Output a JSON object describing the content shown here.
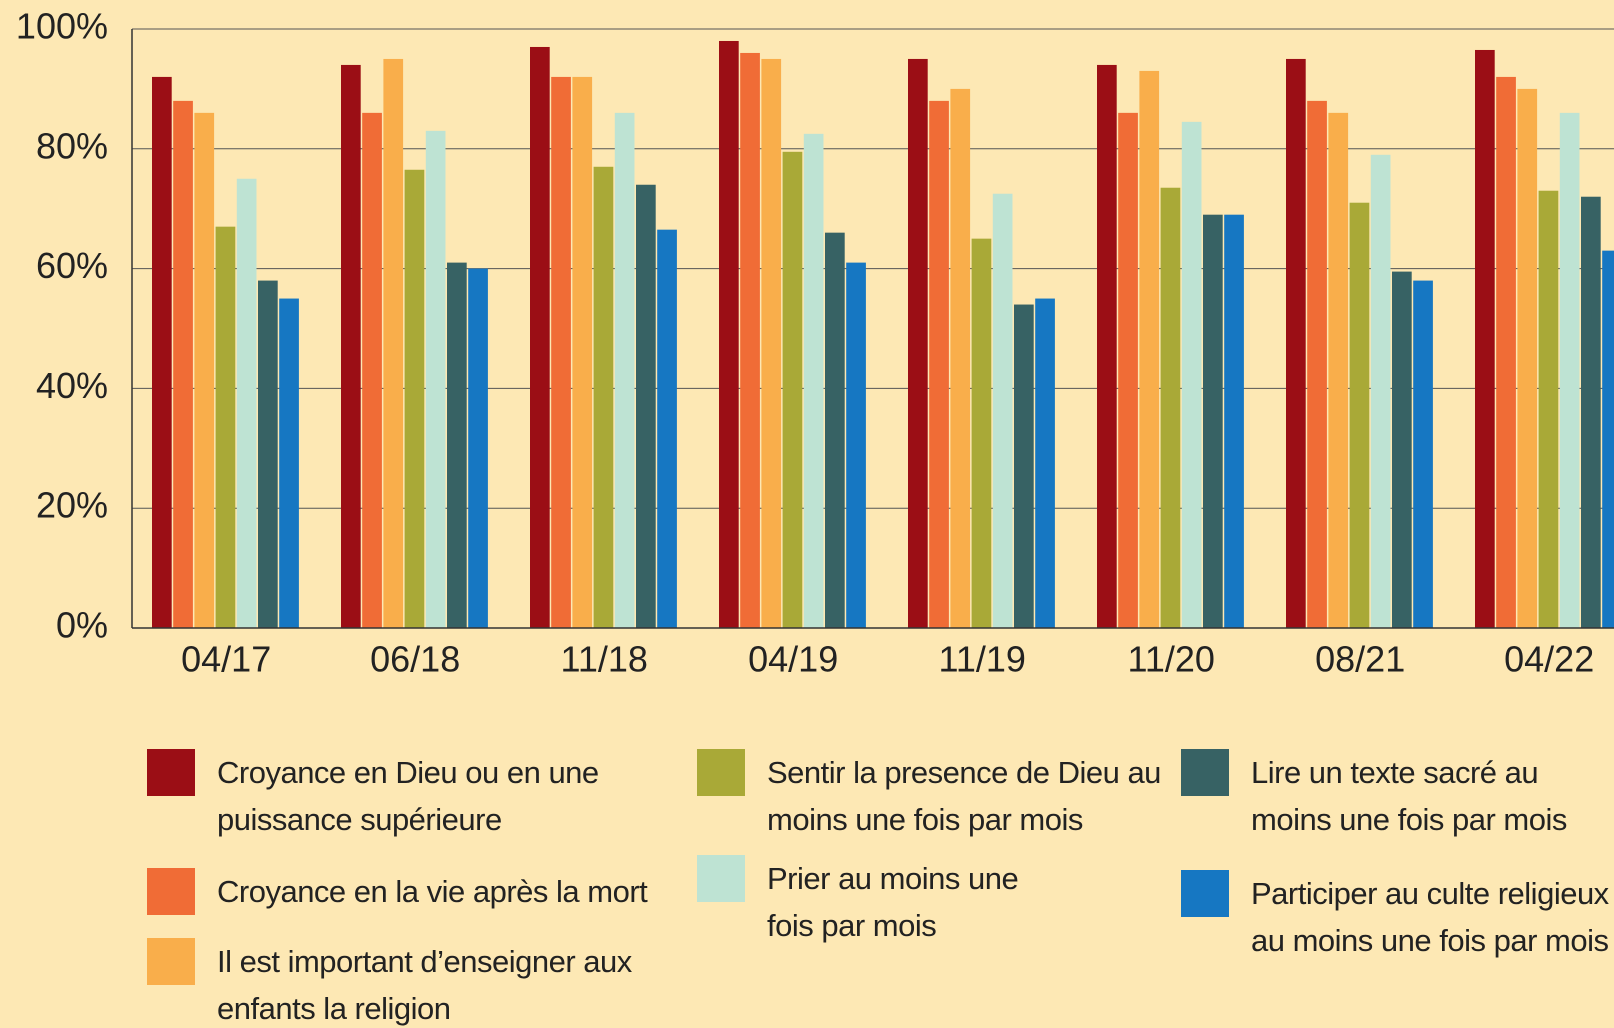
{
  "chart_data": {
    "type": "bar",
    "categories": [
      "04/17",
      "06/18",
      "11/18",
      "04/19",
      "11/19",
      "11/20",
      "08/21",
      "04/22"
    ],
    "series": [
      {
        "name": "Croyance en Dieu ou en une puissance supérieure",
        "color": "#9b0e15",
        "values": [
          92,
          94,
          97,
          98,
          95,
          94,
          95,
          96.5
        ]
      },
      {
        "name": "Croyance en la vie après la mort",
        "color": "#f06c36",
        "values": [
          88,
          86,
          92,
          96,
          88,
          86,
          88,
          92
        ]
      },
      {
        "name": "Il est important d’enseigner aux enfants la religion",
        "color": "#f9ae4b",
        "values": [
          86,
          95,
          92,
          95,
          90,
          93,
          86,
          90
        ]
      },
      {
        "name": "Sentir la presence de Dieu au moins une fois par mois",
        "color": "#a9a937",
        "values": [
          67,
          76.5,
          77,
          79.5,
          65,
          73.5,
          71,
          73
        ]
      },
      {
        "name": "Prier au moins une fois par mois",
        "color": "#bee3d3",
        "values": [
          75,
          83,
          86,
          82.5,
          72.5,
          84.5,
          79,
          86
        ]
      },
      {
        "name": "Lire un texte sacré au moins une fois par mois",
        "color": "#376264",
        "values": [
          58,
          61,
          74,
          66,
          54,
          69,
          59.5,
          72
        ]
      },
      {
        "name": "Participer au culte religieux au moins une fois par mois",
        "color": "#1677c2",
        "values": [
          55,
          60,
          66.5,
          61,
          55,
          69,
          58,
          63
        ]
      }
    ],
    "ylim": [
      0,
      100
    ],
    "yticks": [
      {
        "value": 0,
        "label": "0%"
      },
      {
        "value": 20,
        "label": "20%"
      },
      {
        "value": 40,
        "label": "40%"
      },
      {
        "value": 60,
        "label": "60%"
      },
      {
        "value": 80,
        "label": "80%"
      },
      {
        "value": 100,
        "label": "100%"
      }
    ],
    "grid": true
  }
}
